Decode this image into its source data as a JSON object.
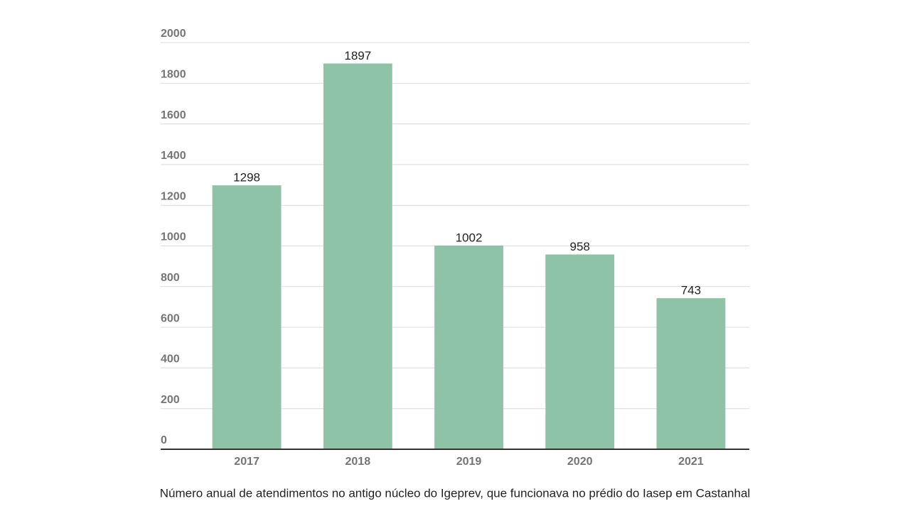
{
  "chart_data": {
    "type": "bar",
    "caption": "Número anual de atendimentos no antigo núcleo do Igeprev, que funcionava no prédio do Iasep em Castanhal",
    "categories": [
      "2017",
      "2018",
      "2019",
      "2020",
      "2021"
    ],
    "values": [
      1298,
      1897,
      1002,
      958,
      743
    ],
    "color": "#8fc3a7",
    "ylim": [
      0,
      2000
    ],
    "yticks": [
      0,
      200,
      400,
      600,
      800,
      1000,
      1200,
      1400,
      1600,
      1800,
      2000
    ],
    "grid": true
  }
}
